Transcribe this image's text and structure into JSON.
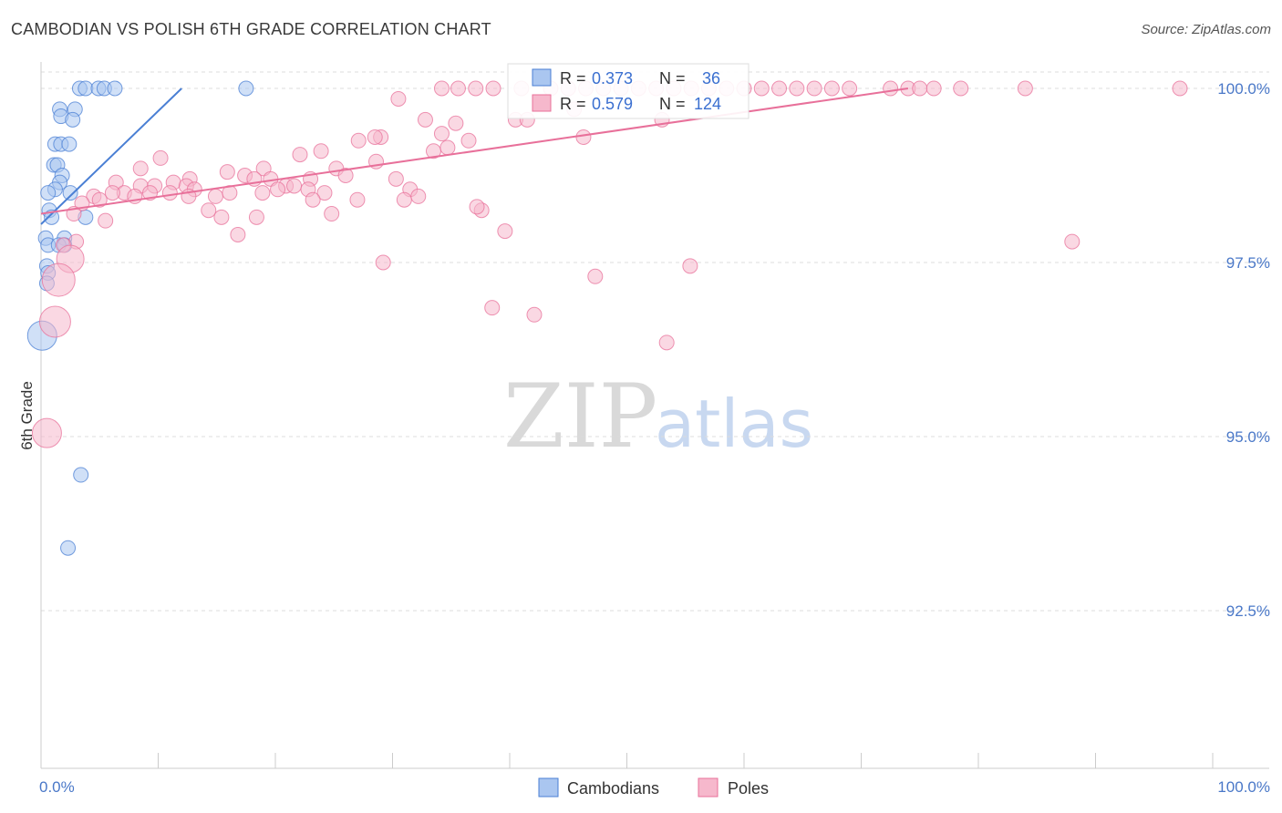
{
  "title": "CAMBODIAN VS POLISH 6TH GRADE CORRELATION CHART",
  "source": "Source: ZipAtlas.com",
  "watermark": {
    "zip": "ZIP",
    "atlas": "atlas"
  },
  "chart_data": {
    "type": "scatter",
    "title": "CAMBODIAN VS POLISH 6TH GRADE CORRELATION CHART",
    "xlabel": "",
    "ylabel": "6th Grade",
    "xlim": [
      0,
      100
    ],
    "ylim": [
      90.5,
      100.4
    ],
    "x_tick_labels": [
      {
        "value": 0,
        "label": "0.0%"
      },
      {
        "value": 100,
        "label": "100.0%"
      }
    ],
    "y_tick_labels": [
      {
        "value": 100.0,
        "label": "100.0%"
      },
      {
        "value": 97.5,
        "label": "97.5%"
      },
      {
        "value": 95.0,
        "label": "95.0%"
      },
      {
        "value": 92.5,
        "label": "92.5%"
      }
    ],
    "legend_stats": [
      {
        "r_label": "R =",
        "r_value": "0.373",
        "n_label": "N =",
        "n_value": "36"
      },
      {
        "r_label": "R =",
        "r_value": "0.579",
        "n_label": "N =",
        "n_value": "124"
      }
    ],
    "series": [
      {
        "name": "Cambodians",
        "color": "#4a7fd4",
        "fill": "#aac6f0",
        "trend": {
          "x": [
            0.0,
            12.0
          ],
          "y": [
            98.05,
            100.0
          ]
        },
        "points": [
          {
            "x": 3.3,
            "y": 100.0
          },
          {
            "x": 3.8,
            "y": 100.0
          },
          {
            "x": 4.9,
            "y": 100.0
          },
          {
            "x": 5.4,
            "y": 100.0
          },
          {
            "x": 6.3,
            "y": 100.0
          },
          {
            "x": 17.5,
            "y": 100.0
          },
          {
            "x": 1.6,
            "y": 99.7
          },
          {
            "x": 2.9,
            "y": 99.7
          },
          {
            "x": 1.7,
            "y": 99.6
          },
          {
            "x": 2.7,
            "y": 99.55
          },
          {
            "x": 1.2,
            "y": 99.2
          },
          {
            "x": 1.7,
            "y": 99.2
          },
          {
            "x": 2.4,
            "y": 99.2
          },
          {
            "x": 1.1,
            "y": 98.9
          },
          {
            "x": 1.4,
            "y": 98.9
          },
          {
            "x": 1.8,
            "y": 98.75
          },
          {
            "x": 1.6,
            "y": 98.65
          },
          {
            "x": 1.2,
            "y": 98.55
          },
          {
            "x": 0.6,
            "y": 98.5
          },
          {
            "x": 2.5,
            "y": 98.5
          },
          {
            "x": 0.7,
            "y": 98.25
          },
          {
            "x": 0.9,
            "y": 98.15
          },
          {
            "x": 3.8,
            "y": 98.15
          },
          {
            "x": 0.4,
            "y": 97.85
          },
          {
            "x": 2.0,
            "y": 97.85
          },
          {
            "x": 0.6,
            "y": 97.75
          },
          {
            "x": 1.5,
            "y": 97.75
          },
          {
            "x": 2.0,
            "y": 97.75
          },
          {
            "x": 0.5,
            "y": 97.45
          },
          {
            "x": 0.6,
            "y": 97.35
          },
          {
            "x": 0.5,
            "y": 97.2
          },
          {
            "x": 0.1,
            "y": 96.45,
            "r": 16
          },
          {
            "x": 3.4,
            "y": 94.45
          },
          {
            "x": 2.3,
            "y": 93.4
          }
        ]
      },
      {
        "name": "Poles",
        "color": "#e8709a",
        "fill": "#f6b8cc",
        "trend": {
          "x": [
            0.0,
            74.0
          ],
          "y": [
            98.2,
            100.0
          ]
        },
        "points": [
          {
            "x": 34.2,
            "y": 100.0
          },
          {
            "x": 35.6,
            "y": 100.0
          },
          {
            "x": 37.1,
            "y": 100.0
          },
          {
            "x": 38.6,
            "y": 100.0
          },
          {
            "x": 41.0,
            "y": 100.0
          },
          {
            "x": 43.5,
            "y": 100.0
          },
          {
            "x": 45.0,
            "y": 100.0
          },
          {
            "x": 46.5,
            "y": 100.0
          },
          {
            "x": 48.0,
            "y": 100.0
          },
          {
            "x": 49.5,
            "y": 100.0
          },
          {
            "x": 51.0,
            "y": 100.0
          },
          {
            "x": 52.5,
            "y": 100.0
          },
          {
            "x": 54.0,
            "y": 100.0
          },
          {
            "x": 55.5,
            "y": 100.0
          },
          {
            "x": 57.0,
            "y": 100.0
          },
          {
            "x": 58.5,
            "y": 100.0
          },
          {
            "x": 60.0,
            "y": 100.0
          },
          {
            "x": 61.5,
            "y": 100.0
          },
          {
            "x": 63.0,
            "y": 100.0
          },
          {
            "x": 64.5,
            "y": 100.0
          },
          {
            "x": 66.0,
            "y": 100.0
          },
          {
            "x": 67.5,
            "y": 100.0
          },
          {
            "x": 69.0,
            "y": 100.0
          },
          {
            "x": 72.5,
            "y": 100.0
          },
          {
            "x": 74.0,
            "y": 100.0
          },
          {
            "x": 75.0,
            "y": 100.0
          },
          {
            "x": 76.2,
            "y": 100.0
          },
          {
            "x": 78.5,
            "y": 100.0
          },
          {
            "x": 84.0,
            "y": 100.0
          },
          {
            "x": 97.2,
            "y": 100.0
          },
          {
            "x": 30.5,
            "y": 99.85
          },
          {
            "x": 45.5,
            "y": 99.7
          },
          {
            "x": 32.8,
            "y": 99.55
          },
          {
            "x": 35.4,
            "y": 99.5
          },
          {
            "x": 40.5,
            "y": 99.55
          },
          {
            "x": 41.5,
            "y": 99.55
          },
          {
            "x": 53.0,
            "y": 99.55
          },
          {
            "x": 29.0,
            "y": 99.3
          },
          {
            "x": 34.2,
            "y": 99.35
          },
          {
            "x": 36.5,
            "y": 99.25
          },
          {
            "x": 28.5,
            "y": 99.3
          },
          {
            "x": 27.1,
            "y": 99.25
          },
          {
            "x": 46.3,
            "y": 99.3
          },
          {
            "x": 22.1,
            "y": 99.05
          },
          {
            "x": 23.9,
            "y": 99.1
          },
          {
            "x": 33.5,
            "y": 99.1
          },
          {
            "x": 34.7,
            "y": 99.15
          },
          {
            "x": 10.2,
            "y": 99.0
          },
          {
            "x": 28.6,
            "y": 98.95
          },
          {
            "x": 19.0,
            "y": 98.85
          },
          {
            "x": 25.2,
            "y": 98.85
          },
          {
            "x": 15.9,
            "y": 98.8
          },
          {
            "x": 23.0,
            "y": 98.7
          },
          {
            "x": 8.5,
            "y": 98.85
          },
          {
            "x": 12.7,
            "y": 98.7
          },
          {
            "x": 17.4,
            "y": 98.75
          },
          {
            "x": 26.0,
            "y": 98.75
          },
          {
            "x": 30.3,
            "y": 98.7
          },
          {
            "x": 6.4,
            "y": 98.65
          },
          {
            "x": 8.5,
            "y": 98.6
          },
          {
            "x": 9.7,
            "y": 98.6
          },
          {
            "x": 11.3,
            "y": 98.65
          },
          {
            "x": 12.4,
            "y": 98.6
          },
          {
            "x": 13.1,
            "y": 98.55
          },
          {
            "x": 18.2,
            "y": 98.7
          },
          {
            "x": 19.6,
            "y": 98.7
          },
          {
            "x": 20.9,
            "y": 98.6
          },
          {
            "x": 31.5,
            "y": 98.55
          },
          {
            "x": 7.1,
            "y": 98.5
          },
          {
            "x": 8.0,
            "y": 98.45
          },
          {
            "x": 11.0,
            "y": 98.5
          },
          {
            "x": 12.6,
            "y": 98.45
          },
          {
            "x": 14.9,
            "y": 98.45
          },
          {
            "x": 16.1,
            "y": 98.5
          },
          {
            "x": 20.2,
            "y": 98.55
          },
          {
            "x": 21.6,
            "y": 98.6
          },
          {
            "x": 22.8,
            "y": 98.55
          },
          {
            "x": 24.2,
            "y": 98.5
          },
          {
            "x": 4.5,
            "y": 98.45
          },
          {
            "x": 5.0,
            "y": 98.4
          },
          {
            "x": 3.5,
            "y": 98.35
          },
          {
            "x": 6.1,
            "y": 98.5
          },
          {
            "x": 9.3,
            "y": 98.5
          },
          {
            "x": 18.9,
            "y": 98.5
          },
          {
            "x": 23.2,
            "y": 98.4
          },
          {
            "x": 27.0,
            "y": 98.4
          },
          {
            "x": 31.0,
            "y": 98.4
          },
          {
            "x": 32.2,
            "y": 98.45
          },
          {
            "x": 37.6,
            "y": 98.25
          },
          {
            "x": 37.2,
            "y": 98.3
          },
          {
            "x": 14.3,
            "y": 98.25
          },
          {
            "x": 15.4,
            "y": 98.15
          },
          {
            "x": 18.4,
            "y": 98.15
          },
          {
            "x": 24.8,
            "y": 98.2
          },
          {
            "x": 2.8,
            "y": 98.2
          },
          {
            "x": 5.5,
            "y": 98.1
          },
          {
            "x": 16.8,
            "y": 97.9
          },
          {
            "x": 39.6,
            "y": 97.95
          },
          {
            "x": 3.0,
            "y": 97.8
          },
          {
            "x": 1.9,
            "y": 97.75
          },
          {
            "x": 88.0,
            "y": 97.8
          },
          {
            "x": 2.5,
            "y": 97.55,
            "r": 15
          },
          {
            "x": 29.2,
            "y": 97.5
          },
          {
            "x": 55.4,
            "y": 97.45
          },
          {
            "x": 47.3,
            "y": 97.3
          },
          {
            "x": 1.5,
            "y": 97.25,
            "r": 18
          },
          {
            "x": 38.5,
            "y": 96.85
          },
          {
            "x": 42.1,
            "y": 96.75
          },
          {
            "x": 1.2,
            "y": 96.65,
            "r": 17
          },
          {
            "x": 53.4,
            "y": 96.35
          },
          {
            "x": 0.5,
            "y": 95.05,
            "r": 16
          }
        ]
      }
    ]
  }
}
